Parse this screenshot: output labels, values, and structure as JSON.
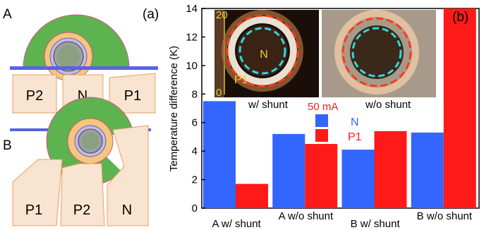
{
  "panel_a": {
    "panel_tag": "(a)",
    "device_a_label": "A",
    "device_b_label": "B",
    "a_pads": [
      "P2",
      "N",
      "P1"
    ],
    "b_pads": [
      "P1",
      "P2",
      "N"
    ],
    "colors": {
      "green": "#5db34f",
      "orange": "#f3c77c",
      "pad_fill": "#f8e4d0",
      "pad_edge": "#e8a060",
      "blue_line": "#5b62e0",
      "red_edge": "#e0507a"
    }
  },
  "panel_b": {
    "panel_tag": "(b)",
    "inset": {
      "left_label": "w/ shunt",
      "right_label": "w/o shunt",
      "current_label": "50 mA",
      "scale_max": "20",
      "scale_min": "0",
      "region_n": "N",
      "region_p1": "P1"
    }
  },
  "chart_data": {
    "type": "bar",
    "categories": [
      "A w/ shunt",
      "A w/o shunt",
      "B w/ shunt",
      "B w/o shunt"
    ],
    "series": [
      {
        "name": "N",
        "color": "#3366ff",
        "values": [
          7.5,
          5.2,
          4.1,
          5.3
        ]
      },
      {
        "name": "P1",
        "color": "#ff1a1a",
        "values": [
          1.7,
          4.5,
          5.4,
          14.0
        ]
      }
    ],
    "ylabel": "Temperature difference (K)",
    "ylim": [
      0,
      14
    ],
    "yticks": [
      0,
      2,
      4,
      6,
      8,
      10,
      12,
      14
    ],
    "legend_position": "center"
  }
}
